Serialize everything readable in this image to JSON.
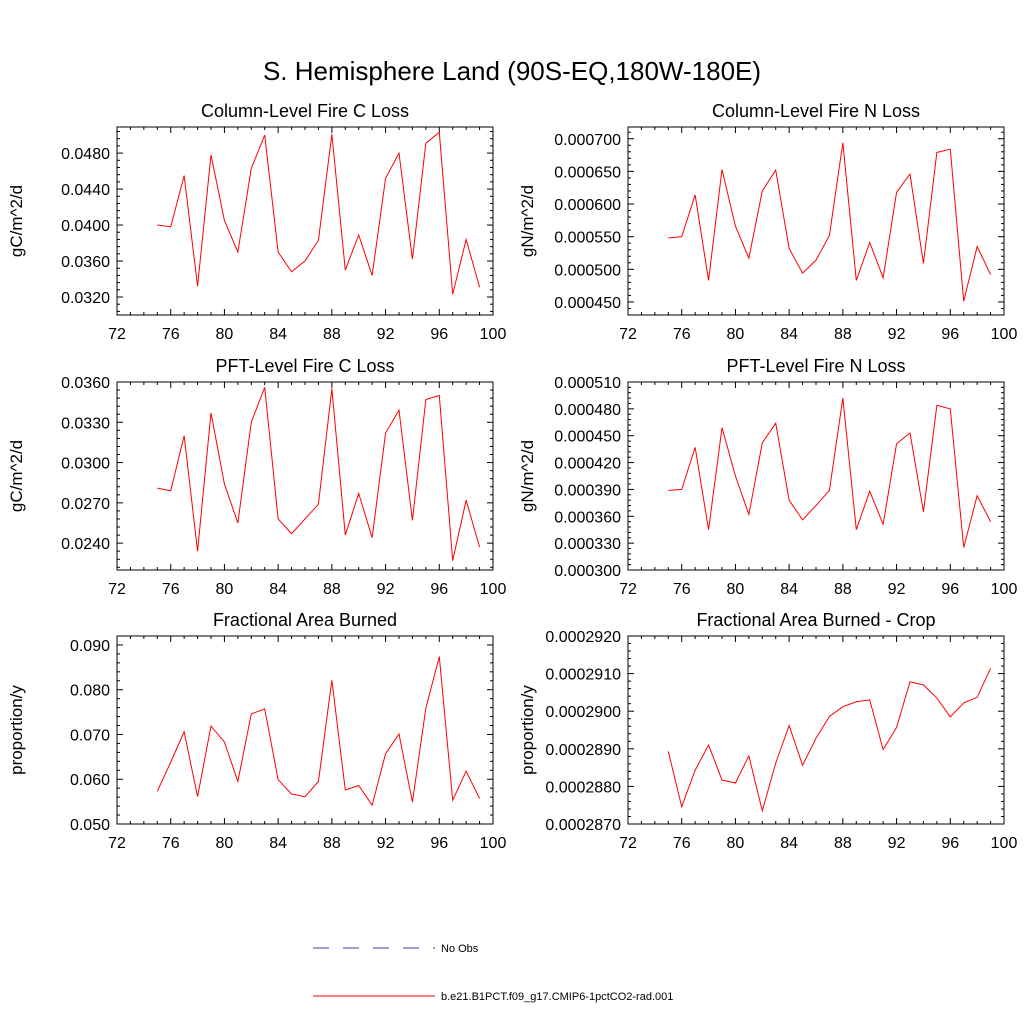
{
  "figure": {
    "title": "S. Hemisphere Land (90S-EQ,180W-180E)"
  },
  "legend": {
    "items": [
      {
        "label": "No Obs",
        "color": "#3b3bb5",
        "style": "dashed"
      },
      {
        "label": "b.e21.B1PCT.f09_g17.CMIP6-1pctCO2-rad.001",
        "color": "#ff0000",
        "style": "solid"
      }
    ]
  },
  "chart_data": [
    {
      "type": "line",
      "title": "Column-Level Fire C Loss",
      "ylabel": "gC/m^2/d",
      "xlim": [
        72,
        100
      ],
      "ylim": [
        0.03,
        0.0509
      ],
      "xticks": [
        72,
        76,
        80,
        84,
        88,
        92,
        96,
        100
      ],
      "xtick_labels": [
        "72",
        "76",
        "80",
        "84",
        "88",
        "92",
        "96",
        "100"
      ],
      "yticks": [
        0.032,
        0.036,
        0.04,
        0.044,
        0.048
      ],
      "ytick_labels": [
        "0.0320",
        "0.0360",
        "0.0400",
        "0.0440",
        "0.0480"
      ],
      "series": [
        {
          "color": "#ff0000",
          "x": [
            75,
            76,
            77,
            78,
            79,
            80,
            81,
            82,
            83,
            84,
            85,
            86,
            87,
            88,
            89,
            90,
            91,
            92,
            93,
            94,
            95,
            96,
            97,
            98,
            99
          ],
          "y": [
            0.04,
            0.0398,
            0.0455,
            0.0332,
            0.0478,
            0.0405,
            0.037,
            0.0463,
            0.05,
            0.037,
            0.0348,
            0.036,
            0.0383,
            0.0501,
            0.035,
            0.0389,
            0.0344,
            0.0452,
            0.048,
            0.0362,
            0.0491,
            0.0503,
            0.0323,
            0.0384,
            0.0331
          ]
        }
      ]
    },
    {
      "type": "line",
      "title": "Column-Level Fire N Loss",
      "ylabel": "gN/m^2/d",
      "xlim": [
        72,
        100
      ],
      "ylim": [
        0.00043,
        0.000718
      ],
      "xticks": [
        72,
        76,
        80,
        84,
        88,
        92,
        96,
        100
      ],
      "xtick_labels": [
        "72",
        "76",
        "80",
        "84",
        "88",
        "92",
        "96",
        "100"
      ],
      "yticks": [
        0.00045,
        0.0005,
        0.00055,
        0.0006,
        0.00065,
        0.0007
      ],
      "ytick_labels": [
        "0.000450",
        "0.000500",
        "0.000550",
        "0.000600",
        "0.000650",
        "0.000700"
      ],
      "series": [
        {
          "color": "#ff0000",
          "x": [
            75,
            76,
            77,
            78,
            79,
            80,
            81,
            82,
            83,
            84,
            85,
            86,
            87,
            88,
            89,
            90,
            91,
            92,
            93,
            94,
            95,
            96,
            97,
            98,
            99
          ],
          "y": [
            0.000548,
            0.00055,
            0.000614,
            0.000483,
            0.000653,
            0.000566,
            0.000517,
            0.00062,
            0.000652,
            0.000532,
            0.000494,
            0.000514,
            0.000552,
            0.000694,
            0.000483,
            0.000541,
            0.000487,
            0.000618,
            0.000646,
            0.000509,
            0.000679,
            0.000684,
            0.000451,
            0.000535,
            0.000492
          ]
        }
      ]
    },
    {
      "type": "line",
      "title": "PFT-Level Fire C Loss",
      "ylabel": "gC/m^2/d",
      "xlim": [
        72,
        100
      ],
      "ylim": [
        0.022,
        0.036
      ],
      "xticks": [
        72,
        76,
        80,
        84,
        88,
        92,
        96,
        100
      ],
      "xtick_labels": [
        "72",
        "76",
        "80",
        "84",
        "88",
        "92",
        "96",
        "100"
      ],
      "yticks": [
        0.024,
        0.027,
        0.03,
        0.033,
        0.036
      ],
      "ytick_labels": [
        "0.0240",
        "0.0270",
        "0.0300",
        "0.0330",
        "0.0360"
      ],
      "series": [
        {
          "color": "#ff0000",
          "x": [
            75,
            76,
            77,
            78,
            79,
            80,
            81,
            82,
            83,
            84,
            85,
            86,
            87,
            88,
            89,
            90,
            91,
            92,
            93,
            94,
            95,
            96,
            97,
            98,
            99
          ],
          "y": [
            0.0281,
            0.0279,
            0.032,
            0.0234,
            0.0337,
            0.0284,
            0.0255,
            0.033,
            0.0356,
            0.0258,
            0.0247,
            0.0258,
            0.0269,
            0.0355,
            0.0246,
            0.0277,
            0.0244,
            0.0322,
            0.0339,
            0.0257,
            0.0347,
            0.035,
            0.0227,
            0.0272,
            0.0237
          ]
        }
      ]
    },
    {
      "type": "line",
      "title": "PFT-Level Fire N Loss",
      "ylabel": "gN/m^2/d",
      "xlim": [
        72,
        100
      ],
      "ylim": [
        0.0003,
        0.00051
      ],
      "xticks": [
        72,
        76,
        80,
        84,
        88,
        92,
        96,
        100
      ],
      "xtick_labels": [
        "72",
        "76",
        "80",
        "84",
        "88",
        "92",
        "96",
        "100"
      ],
      "yticks": [
        0.0003,
        0.00033,
        0.00036,
        0.00039,
        0.00042,
        0.00045,
        0.00048,
        0.00051
      ],
      "ytick_labels": [
        "0.000300",
        "0.000330",
        "0.000360",
        "0.000390",
        "0.000420",
        "0.000450",
        "0.000480",
        "0.000510"
      ],
      "series": [
        {
          "color": "#ff0000",
          "x": [
            75,
            76,
            77,
            78,
            79,
            80,
            81,
            82,
            83,
            84,
            85,
            86,
            87,
            88,
            89,
            90,
            91,
            92,
            93,
            94,
            95,
            96,
            97,
            98,
            99
          ],
          "y": [
            0.000389,
            0.00039,
            0.000437,
            0.000345,
            0.000459,
            0.000405,
            0.000362,
            0.000442,
            0.000464,
            0.000378,
            0.000356,
            0.000372,
            0.000389,
            0.000492,
            0.000345,
            0.000388,
            0.000351,
            0.000441,
            0.000453,
            0.000365,
            0.000484,
            0.00048,
            0.000325,
            0.000383,
            0.000354
          ]
        }
      ]
    },
    {
      "type": "line",
      "title": "Fractional Area Burned",
      "ylabel": "proportion/y",
      "xlim": [
        72,
        100
      ],
      "ylim": [
        0.05,
        0.092
      ],
      "xticks": [
        72,
        76,
        80,
        84,
        88,
        92,
        96,
        100
      ],
      "xtick_labels": [
        "72",
        "76",
        "80",
        "84",
        "88",
        "92",
        "96",
        "100"
      ],
      "yticks": [
        0.05,
        0.06,
        0.07,
        0.08,
        0.09
      ],
      "ytick_labels": [
        "0.050",
        "0.060",
        "0.070",
        "0.080",
        "0.090"
      ],
      "series": [
        {
          "color": "#ff0000",
          "x": [
            75,
            76,
            77,
            78,
            79,
            80,
            81,
            82,
            83,
            84,
            85,
            86,
            87,
            88,
            89,
            90,
            91,
            92,
            93,
            94,
            95,
            96,
            97,
            98,
            99
          ],
          "y": [
            0.0573,
            0.0638,
            0.0706,
            0.0561,
            0.0719,
            0.0683,
            0.0595,
            0.0746,
            0.0757,
            0.0599,
            0.0567,
            0.0561,
            0.0595,
            0.0821,
            0.0576,
            0.0586,
            0.0542,
            0.0657,
            0.0701,
            0.0549,
            0.0759,
            0.0874,
            0.0553,
            0.0618,
            0.0557
          ]
        }
      ]
    },
    {
      "type": "line",
      "title": "Fractional Area Burned - Crop",
      "ylabel": "proportion/y",
      "xlim": [
        72,
        100
      ],
      "ylim": [
        0.000287,
        0.000292
      ],
      "xticks": [
        72,
        76,
        80,
        84,
        88,
        92,
        96,
        100
      ],
      "xtick_labels": [
        "72",
        "76",
        "80",
        "84",
        "88",
        "92",
        "96",
        "100"
      ],
      "yticks": [
        0.000287,
        0.000288,
        0.000289,
        0.00029,
        0.000291,
        0.000292
      ],
      "ytick_labels": [
        "0.0002870",
        "0.0002880",
        "0.0002890",
        "0.0002900",
        "0.0002910",
        "0.0002920"
      ],
      "series": [
        {
          "color": "#ff0000",
          "x": [
            75,
            76,
            77,
            78,
            79,
            80,
            81,
            82,
            83,
            84,
            85,
            86,
            87,
            88,
            89,
            90,
            91,
            92,
            93,
            94,
            95,
            96,
            97,
            98,
            99
          ],
          "y": [
            0.00028893,
            0.00028746,
            0.00028843,
            0.0002891,
            0.00028817,
            0.00028809,
            0.00028881,
            0.00028735,
            0.00028862,
            0.00028962,
            0.00028856,
            0.00028928,
            0.00028986,
            0.00029012,
            0.00029025,
            0.0002903,
            0.00028898,
            0.00028957,
            0.00029078,
            0.0002907,
            0.00029035,
            0.00028985,
            0.00029022,
            0.00029037,
            0.00029114
          ]
        }
      ]
    }
  ]
}
